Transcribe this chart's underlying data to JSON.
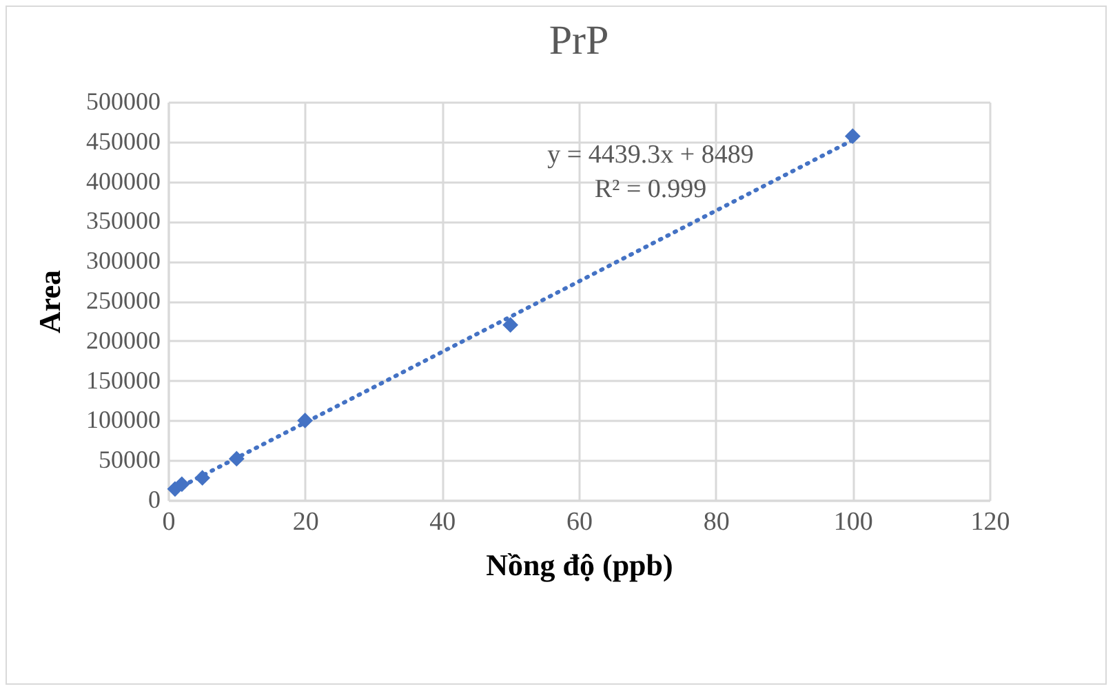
{
  "chart_data": {
    "type": "scatter",
    "title": "PrP",
    "xlabel": "Nồng độ (ppb)",
    "ylabel": "Area",
    "x": [
      1,
      2,
      5,
      10,
      20,
      50,
      100
    ],
    "series": [
      {
        "color": "#4472c4",
        "marker": "diamond",
        "values": [
          14000,
          20000,
          28000,
          52000,
          100000,
          220000,
          457000
        ]
      },
      {
        "type": "line",
        "color": "#4472c4",
        "line_style": "dotted",
        "x": [
          1,
          100
        ],
        "values": [
          13000,
          452000
        ]
      }
    ],
    "xlim": [
      0,
      120
    ],
    "xticks": [
      0,
      20,
      40,
      60,
      80,
      100,
      120
    ],
    "ylim": [
      0,
      500000
    ],
    "yticks": [
      0,
      50000,
      100000,
      150000,
      200000,
      250000,
      300000,
      350000,
      400000,
      450000,
      500000
    ],
    "grid": true,
    "annotations": [
      "y = 4439.3x + 8489",
      "R² = 0.999"
    ]
  }
}
